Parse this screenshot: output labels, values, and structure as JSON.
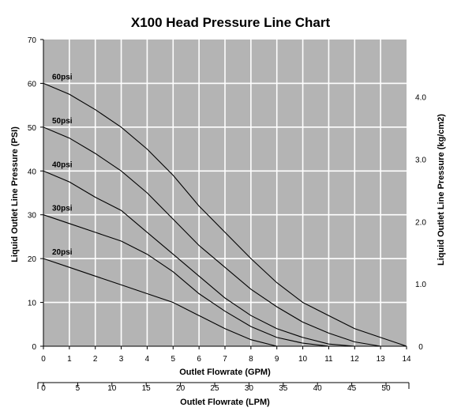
{
  "chart_data": {
    "type": "line",
    "title": "X100 Head Pressure Line Chart",
    "xlabel": "Outlet Flowrate (GPM)",
    "x2label": "Outlet Flowrate (LPM)",
    "ylabel": "Liquid Outlet Line Pressure (PSI)",
    "y2label": "Liquid Outlet Line Pressure (kg/cm2)",
    "xlim": [
      0,
      14
    ],
    "ylim": [
      0,
      70
    ],
    "x_ticks": [
      "0",
      "1",
      "2",
      "3",
      "4",
      "5",
      "6",
      "7",
      "8",
      "9",
      "10",
      "11",
      "12",
      "13",
      "14"
    ],
    "y_ticks": [
      "0",
      "10",
      "20",
      "30",
      "40",
      "50",
      "60",
      "70"
    ],
    "x2_ticks": [
      "0",
      "5",
      "10",
      "15",
      "20",
      "25",
      "30",
      "35",
      "40",
      "45",
      "50"
    ],
    "y2_ticks": [
      "0",
      "1.0",
      "2.0",
      "3.0",
      "4.0"
    ],
    "grid": true,
    "plot_background": "#b4b4b4",
    "grid_color": "#ffffff",
    "line_color": "#000000",
    "series": [
      {
        "name": "60psi",
        "x": [
          0,
          1,
          2,
          3,
          4,
          5,
          6,
          7,
          8,
          9,
          10,
          11,
          12,
          13,
          14
        ],
        "y": [
          60,
          57.5,
          54,
          50,
          45,
          39,
          32,
          26,
          20,
          14.5,
          10,
          7,
          4,
          2,
          0
        ]
      },
      {
        "name": "50psi",
        "x": [
          0,
          1,
          2,
          3,
          4,
          5,
          6,
          7,
          8,
          9,
          10,
          11,
          12,
          13
        ],
        "y": [
          50,
          47.5,
          44,
          40,
          35,
          29,
          23,
          18,
          13,
          9,
          5.5,
          3,
          1,
          0
        ]
      },
      {
        "name": "40psi",
        "x": [
          0,
          1,
          2,
          3,
          4,
          5,
          6,
          7,
          8,
          9,
          10,
          11,
          12
        ],
        "y": [
          40,
          37.5,
          34,
          31,
          26,
          21,
          16,
          11,
          7,
          4,
          2,
          0.5,
          0
        ]
      },
      {
        "name": "30psi",
        "x": [
          0,
          1,
          2,
          3,
          4,
          5,
          6,
          7,
          8,
          9,
          10,
          11
        ],
        "y": [
          30,
          28,
          26,
          24,
          21,
          17,
          12,
          8,
          4.5,
          2,
          0.7,
          0
        ]
      },
      {
        "name": "20psi",
        "x": [
          0,
          1,
          2,
          3,
          4,
          5,
          6,
          7,
          8,
          9
        ],
        "y": [
          20,
          18,
          16,
          14,
          12,
          10,
          7,
          4,
          1.5,
          0
        ]
      }
    ]
  }
}
